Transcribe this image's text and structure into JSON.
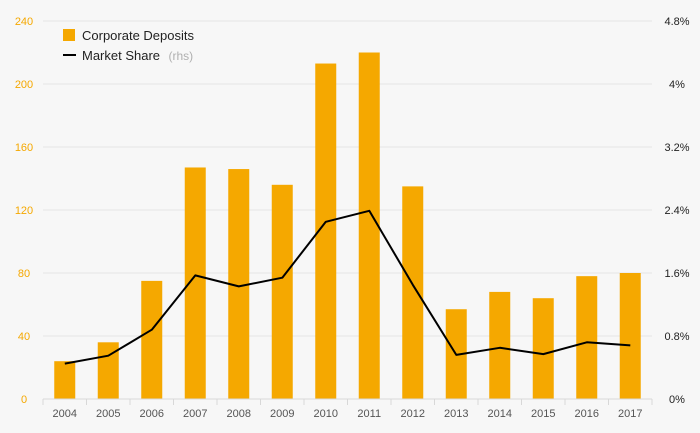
{
  "chart_data": {
    "type": "bar",
    "categories": [
      "2004",
      "2005",
      "2006",
      "2007",
      "2008",
      "2009",
      "2010",
      "2011",
      "2012",
      "2013",
      "2014",
      "2015",
      "2016",
      "2017"
    ],
    "series": [
      {
        "name": "Corporate Deposits",
        "type": "bar",
        "axis": "left",
        "values": [
          24,
          36,
          75,
          147,
          146,
          136,
          213,
          220,
          135,
          57,
          68,
          64,
          78,
          80
        ]
      },
      {
        "name": "Market Share",
        "name_suffix": "(rhs)",
        "type": "line",
        "axis": "right",
        "values": [
          0.45,
          0.55,
          0.88,
          1.57,
          1.43,
          1.54,
          2.25,
          2.39,
          1.45,
          0.56,
          0.65,
          0.57,
          0.72,
          0.68
        ]
      }
    ],
    "y_left": {
      "ylim": [
        0,
        240
      ],
      "ticks": [
        0,
        40,
        80,
        120,
        160,
        200,
        240
      ],
      "tick_labels": [
        "0",
        "40",
        "80",
        "120",
        "160",
        "200",
        "240"
      ]
    },
    "y_right": {
      "ylim": [
        0,
        4.8
      ],
      "ticks": [
        0,
        0.8,
        1.6,
        2.4,
        3.2,
        4.0,
        4.8
      ],
      "tick_labels": [
        "0%",
        "0.8%",
        "1.6%",
        "2.4%",
        "3.2%",
        "4%",
        "4.8%"
      ]
    },
    "title": "",
    "xlabel": "",
    "ylabel": "",
    "grid": true,
    "legend_position": "top-left",
    "colors": {
      "bar": "#f5a800",
      "line": "#000000",
      "left_axis": "#f5a800",
      "right_axis": "#222222",
      "grid": "#e4e4e4",
      "background": "#f7f7f7"
    }
  }
}
